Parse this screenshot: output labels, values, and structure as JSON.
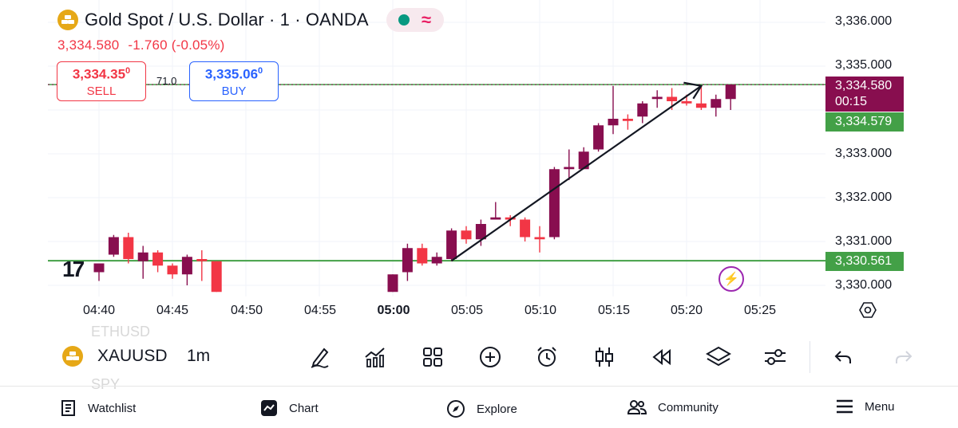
{
  "header": {
    "title": "Gold Spot / U.S. Dollar · 1 · OANDA",
    "status_icon": "market-open-dot",
    "status_color": "#089981",
    "wave_glyph": "≈"
  },
  "quote": {
    "last": "3,334.580",
    "change": "-1.760",
    "change_pct": "(-0.05%)"
  },
  "trade": {
    "sell_price": "3,334.35",
    "sell_sup": "0",
    "sell_label": "SELL",
    "spread": "71.0",
    "buy_price": "3,335.06",
    "buy_sup": "0",
    "buy_label": "BUY"
  },
  "price_axis": {
    "labels": [
      "3,336.000",
      "3,335.000",
      "3,333.000",
      "3,332.000",
      "3,331.000",
      "3,330.000"
    ],
    "last_price_tag": "3,334.580",
    "countdown": "00:15",
    "green_tag_1": "3,334.579",
    "green_tag_2": "3,330.561"
  },
  "time_axis": {
    "labels": [
      "04:40",
      "04:45",
      "04:50",
      "04:55",
      "05:00",
      "05:05",
      "05:10",
      "05:15",
      "05:20",
      "05:25"
    ],
    "bold_label": "05:00"
  },
  "chart_data": {
    "type": "candlestick",
    "interval": "1m",
    "colors": {
      "up": "#880e4f",
      "down": "#f23645",
      "level": "#43a047"
    },
    "horizontal_levels": [
      3334.579,
      3330.561
    ],
    "trend_arrow": {
      "from": [
        "05:04",
        3330.56
      ],
      "to": [
        "05:21",
        3334.55
      ]
    },
    "candles": [
      {
        "t": "04:40",
        "o": 3330.3,
        "h": 3330.5,
        "l": 3330.1,
        "c": 3330.5
      },
      {
        "t": "04:41",
        "o": 3330.7,
        "h": 3331.15,
        "l": 3330.65,
        "c": 3331.1
      },
      {
        "t": "04:42",
        "o": 3331.1,
        "h": 3331.2,
        "l": 3330.5,
        "c": 3330.6
      },
      {
        "t": "04:43",
        "o": 3330.55,
        "h": 3330.9,
        "l": 3330.15,
        "c": 3330.75
      },
      {
        "t": "04:44",
        "o": 3330.75,
        "h": 3330.8,
        "l": 3330.3,
        "c": 3330.45
      },
      {
        "t": "04:45",
        "o": 3330.45,
        "h": 3330.5,
        "l": 3330.15,
        "c": 3330.25
      },
      {
        "t": "04:46",
        "o": 3330.25,
        "h": 3330.7,
        "l": 3330.0,
        "c": 3330.65
      },
      {
        "t": "04:47",
        "o": 3330.6,
        "h": 3330.8,
        "l": 3330.1,
        "c": 3330.55
      },
      {
        "t": "04:48",
        "o": 3330.55,
        "h": 3330.55,
        "l": 3329.85,
        "c": 3329.85
      },
      {
        "t": "05:00",
        "o": 3329.85,
        "h": 3330.25,
        "l": 3329.85,
        "c": 3330.25
      },
      {
        "t": "05:01",
        "o": 3330.3,
        "h": 3330.95,
        "l": 3330.1,
        "c": 3330.85
      },
      {
        "t": "05:02",
        "o": 3330.85,
        "h": 3330.95,
        "l": 3330.45,
        "c": 3330.5
      },
      {
        "t": "05:03",
        "o": 3330.5,
        "h": 3330.75,
        "l": 3330.45,
        "c": 3330.65
      },
      {
        "t": "05:04",
        "o": 3330.6,
        "h": 3331.3,
        "l": 3330.55,
        "c": 3331.25
      },
      {
        "t": "05:05",
        "o": 3331.25,
        "h": 3331.35,
        "l": 3330.95,
        "c": 3331.05
      },
      {
        "t": "05:06",
        "o": 3331.05,
        "h": 3331.5,
        "l": 3330.9,
        "c": 3331.4
      },
      {
        "t": "05:07",
        "o": 3331.5,
        "h": 3331.9,
        "l": 3331.5,
        "c": 3331.55
      },
      {
        "t": "05:08",
        "o": 3331.55,
        "h": 3331.6,
        "l": 3331.35,
        "c": 3331.5
      },
      {
        "t": "05:09",
        "o": 3331.5,
        "h": 3331.55,
        "l": 3331.0,
        "c": 3331.1
      },
      {
        "t": "05:10",
        "o": 3331.1,
        "h": 3331.35,
        "l": 3330.75,
        "c": 3331.05
      },
      {
        "t": "05:11",
        "o": 3331.1,
        "h": 3332.7,
        "l": 3331.05,
        "c": 3332.65
      },
      {
        "t": "05:12",
        "o": 3332.65,
        "h": 3333.1,
        "l": 3332.4,
        "c": 3332.7
      },
      {
        "t": "05:13",
        "o": 3332.65,
        "h": 3333.15,
        "l": 3332.65,
        "c": 3333.05
      },
      {
        "t": "05:14",
        "o": 3333.1,
        "h": 3333.7,
        "l": 3333.05,
        "c": 3333.65
      },
      {
        "t": "05:15",
        "o": 3333.65,
        "h": 3334.55,
        "l": 3333.45,
        "c": 3333.8
      },
      {
        "t": "05:16",
        "o": 3333.8,
        "h": 3333.9,
        "l": 3333.55,
        "c": 3333.75
      },
      {
        "t": "05:17",
        "o": 3333.85,
        "h": 3334.2,
        "l": 3333.7,
        "c": 3334.15
      },
      {
        "t": "05:18",
        "o": 3334.25,
        "h": 3334.45,
        "l": 3334.05,
        "c": 3334.3
      },
      {
        "t": "05:19",
        "o": 3334.3,
        "h": 3334.5,
        "l": 3334.0,
        "c": 3334.2
      },
      {
        "t": "05:20",
        "o": 3334.2,
        "h": 3334.35,
        "l": 3334.1,
        "c": 3334.15
      },
      {
        "t": "05:21",
        "o": 3334.15,
        "h": 3334.55,
        "l": 3334.0,
        "c": 3334.05
      },
      {
        "t": "05:22",
        "o": 3334.05,
        "h": 3334.35,
        "l": 3333.85,
        "c": 3334.25
      },
      {
        "t": "05:23",
        "o": 3334.25,
        "h": 3334.58,
        "l": 3334.0,
        "c": 3334.58
      }
    ]
  },
  "toolbar": {
    "symbol_above": "ETHUSD",
    "symbol": "XAUUSD",
    "symbol_below": "SPY",
    "interval": "1m",
    "tools": [
      "draw-icon",
      "indicators-icon",
      "layouts-icon",
      "add-icon",
      "alert-icon",
      "candle-type-icon",
      "replay-icon",
      "layers-icon",
      "settings-sliders-icon"
    ],
    "undo_icon": "undo-icon",
    "redo_icon": "redo-icon"
  },
  "bottom_nav": {
    "items": [
      {
        "label": "Watchlist",
        "icon": "watchlist-icon"
      },
      {
        "label": "Chart",
        "icon": "chart-icon"
      },
      {
        "label": "Explore",
        "icon": "compass-icon"
      },
      {
        "label": "Community",
        "icon": "community-icon"
      },
      {
        "label": "Menu",
        "icon": "menu-icon"
      }
    ]
  }
}
